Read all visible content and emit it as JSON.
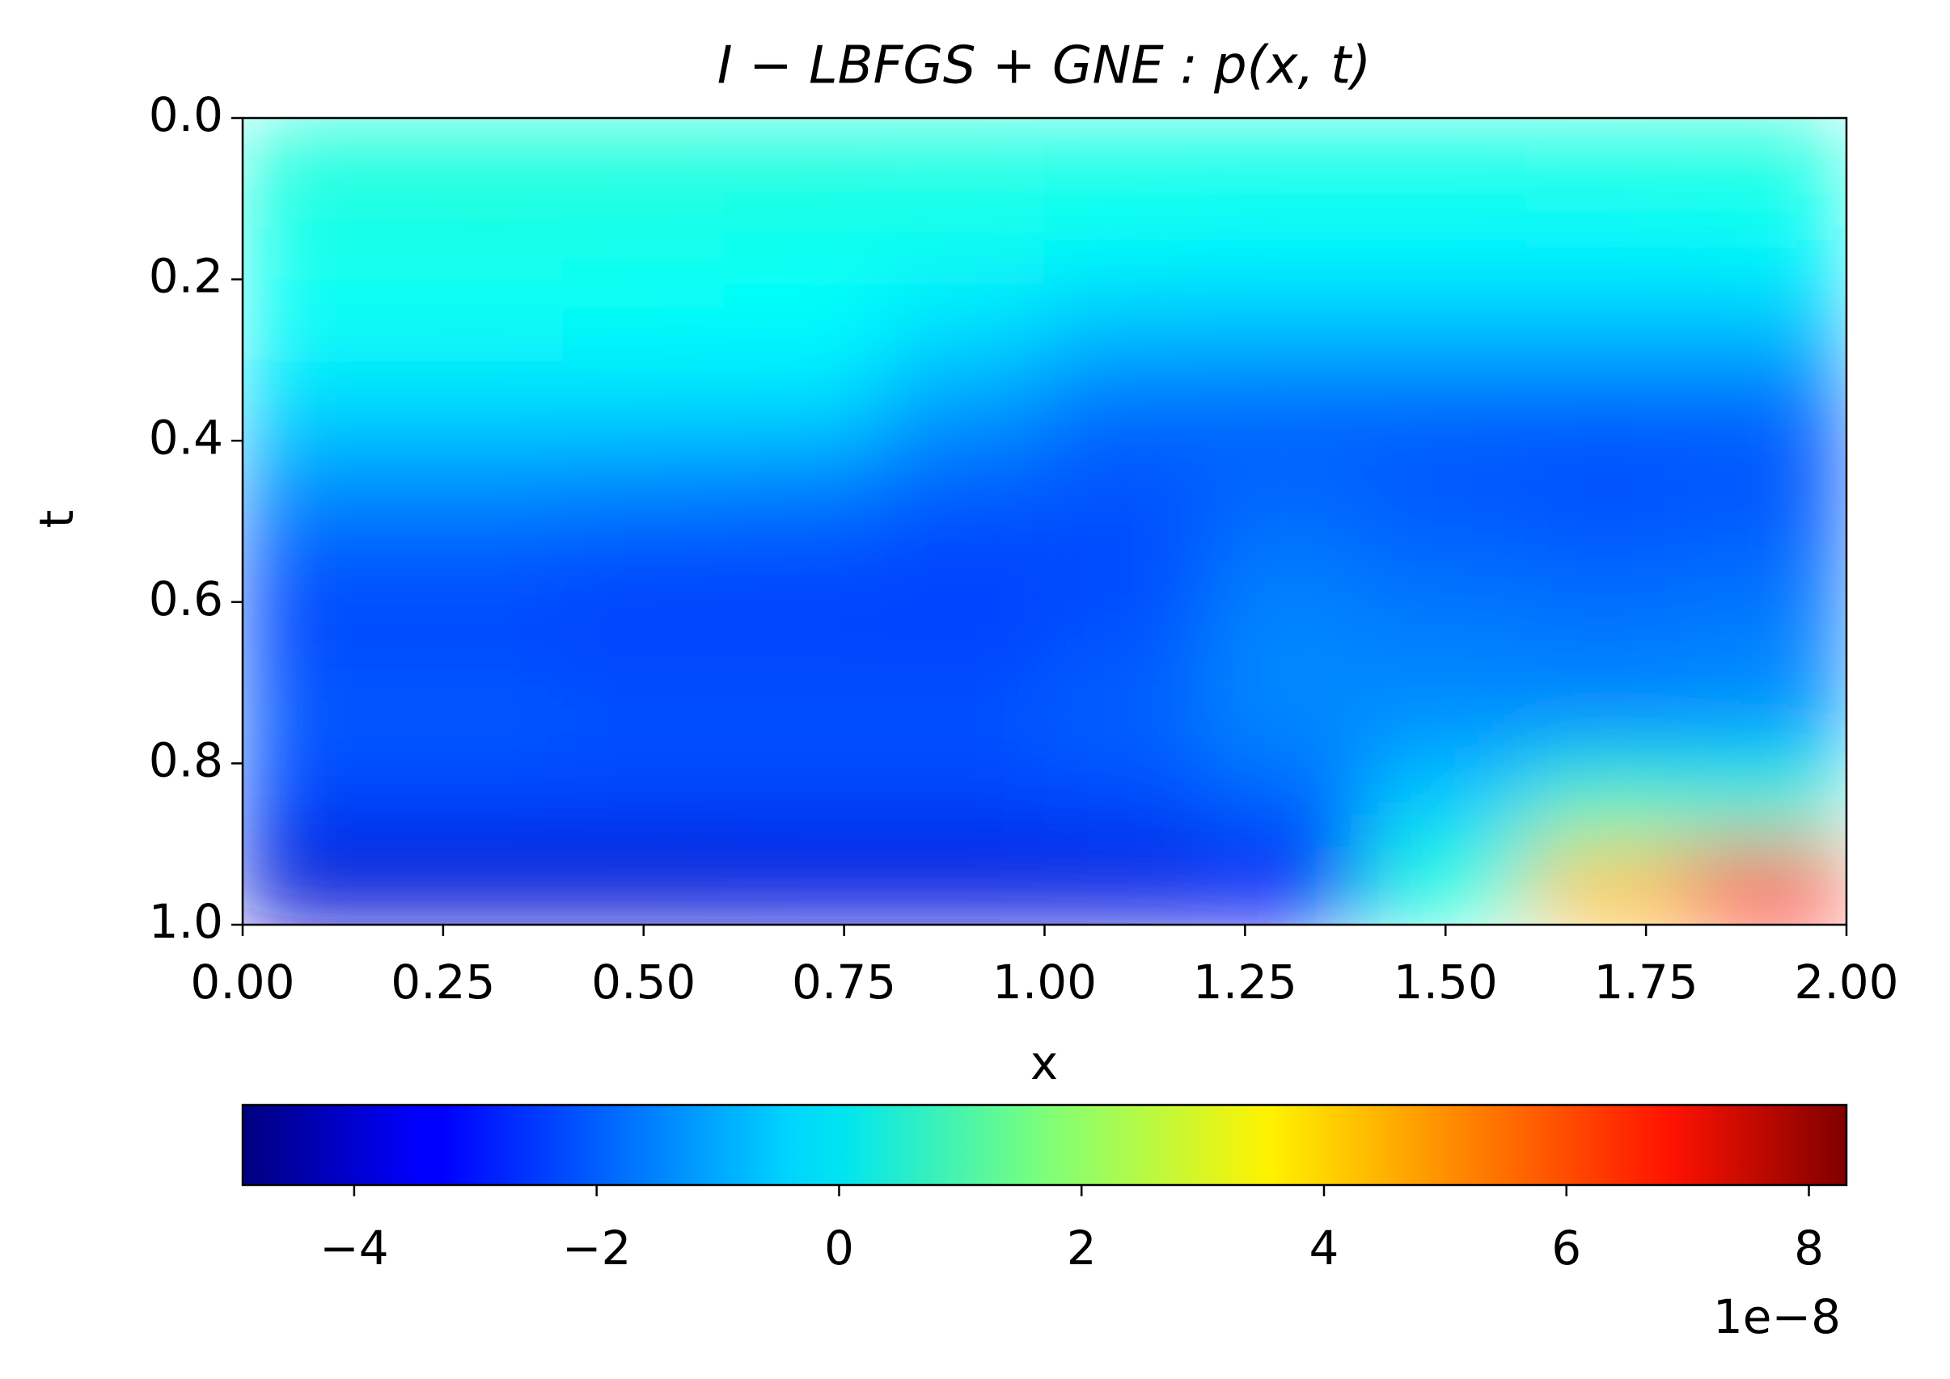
{
  "chart_data": {
    "type": "heatmap",
    "title": "I − LBFGS + GNE : p(x, t)",
    "x_label": "x",
    "y_label": "t",
    "x": [
      0.1,
      0.3,
      0.5,
      0.7,
      0.9,
      1.1,
      1.3,
      1.5,
      1.7,
      1.9
    ],
    "y": [
      0.05,
      0.15,
      0.25,
      0.35,
      0.45,
      0.55,
      0.65,
      0.75,
      0.85,
      0.95
    ],
    "values": [
      [
        0.5,
        0.5,
        0.5,
        0.5,
        0.45,
        0.4,
        0.4,
        0.4,
        0.45,
        0.5
      ],
      [
        0.3,
        0.35,
        0.3,
        0.25,
        0.2,
        0.1,
        0.0,
        0.0,
        0.0,
        0.1
      ],
      [
        0.15,
        0.15,
        0.1,
        0.05,
        -0.3,
        -0.7,
        -0.7,
        -0.7,
        -0.7,
        -0.7
      ],
      [
        -0.4,
        -0.4,
        -0.4,
        -0.4,
        -1.2,
        -1.8,
        -1.9,
        -1.9,
        -1.9,
        -1.9
      ],
      [
        -1.4,
        -1.4,
        -1.5,
        -1.6,
        -2.0,
        -2.2,
        -2.0,
        -2.2,
        -2.3,
        -2.2
      ],
      [
        -2.2,
        -2.2,
        -2.3,
        -2.3,
        -2.4,
        -2.3,
        -1.7,
        -1.9,
        -2.0,
        -1.9
      ],
      [
        -2.3,
        -2.3,
        -2.4,
        -2.4,
        -2.4,
        -2.2,
        -1.5,
        -1.6,
        -1.7,
        -1.6
      ],
      [
        -2.1,
        -2.1,
        -2.2,
        -2.2,
        -2.2,
        -2.0,
        -1.5,
        -1.4,
        -1.4,
        -1.3
      ],
      [
        -2.4,
        -2.4,
        -2.4,
        -2.4,
        -2.4,
        -2.3,
        -2.0,
        -0.6,
        0.8,
        0.6
      ],
      [
        -3.9,
        -3.9,
        -3.9,
        -3.8,
        -3.8,
        -3.7,
        -3.4,
        0.5,
        4.2,
        6.5
      ]
    ],
    "xlim": [
      0,
      2
    ],
    "ylim": [
      0,
      1
    ],
    "y_inverted": true,
    "xticks": [
      {
        "value": 0,
        "label": "0.00"
      },
      {
        "value": 0.25,
        "label": "0.25"
      },
      {
        "value": 0.5,
        "label": "0.50"
      },
      {
        "value": 0.75,
        "label": "0.75"
      },
      {
        "value": 1,
        "label": "1.00"
      },
      {
        "value": 1.25,
        "label": "1.25"
      },
      {
        "value": 1.5,
        "label": "1.50"
      },
      {
        "value": 1.75,
        "label": "1.75"
      },
      {
        "value": 2,
        "label": "2.00"
      }
    ],
    "yticks": [
      {
        "value": 0,
        "label": "0.0"
      },
      0.2,
      0.4,
      0.6,
      0.8,
      {
        "value": 1,
        "label": "1.0"
      }
    ],
    "colormap": "jet",
    "clim": [
      -4.92,
      8.31
    ],
    "cticks": [
      {
        "value": -4,
        "label": "−4"
      },
      {
        "value": -2,
        "label": "−2"
      },
      0,
      2,
      4,
      6,
      8
    ],
    "c_offset_label": "1e−8"
  }
}
